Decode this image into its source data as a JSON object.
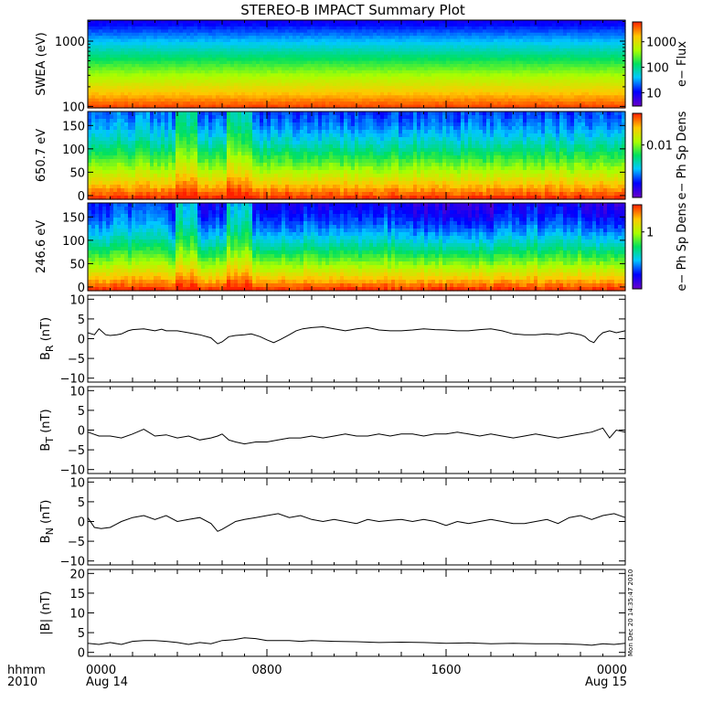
{
  "chart_data": {
    "type": "multi-panel",
    "title": "STEREO-B IMPACT Summary Plot",
    "x_axis": {
      "tick_labels": [
        "0000",
        "0800",
        "1600",
        "0000"
      ],
      "tick_hours": [
        0,
        8,
        16,
        24
      ],
      "date_labels": [
        "Aug 14",
        "Aug 15"
      ],
      "row_labels": [
        "hhmm",
        "2010"
      ],
      "range_hours": [
        0,
        24
      ]
    },
    "timestamp": "Mon Dec 20 14:35:47 2010",
    "spectrograms": [
      {
        "ylabel": "SWEA (eV)",
        "yscale": "log",
        "ylim": [
          95,
          2100
        ],
        "yticks": [
          100,
          1000
        ],
        "ytick_labels": [
          "100",
          "1000"
        ],
        "colorbar": {
          "label": "e− Flux",
          "scale": "log",
          "range": [
            3,
            6000
          ],
          "ticks": [
            10,
            100,
            1000
          ],
          "tick_labels": [
            "10",
            "100",
            "1000"
          ]
        }
      },
      {
        "ylabel": "650.7 eV",
        "yscale": "linear",
        "ylim": [
          -8,
          180
        ],
        "yticks": [
          0,
          50,
          100,
          150
        ],
        "ytick_labels": [
          "0",
          "50",
          "100",
          "150"
        ],
        "colorbar": {
          "label": "e− Ph Sp Dens",
          "scale": "log",
          "range": [
            0.001,
            0.04
          ],
          "ticks": [
            0.01
          ],
          "tick_labels": [
            "0.01"
          ]
        }
      },
      {
        "ylabel": "246.6 eV",
        "yscale": "linear",
        "ylim": [
          -8,
          180
        ],
        "yticks": [
          0,
          50,
          100,
          150
        ],
        "ytick_labels": [
          "0",
          "50",
          "100",
          "150"
        ],
        "colorbar": {
          "label": "e− Ph Sp Dens",
          "scale": "log",
          "range": [
            0.1,
            3
          ],
          "ticks": [
            1
          ],
          "tick_labels": [
            "1"
          ]
        }
      }
    ],
    "lines": [
      {
        "ylabel": "B",
        "ylabel_sub": "R",
        "ylabel_unit": "(nT)",
        "ylim": [
          -11,
          11
        ],
        "yticks": [
          -10,
          -5,
          0,
          5,
          10
        ],
        "ytick_labels": [
          "−10",
          "−5",
          "0",
          "5",
          "10"
        ],
        "x": [
          0,
          0.3,
          0.5,
          0.8,
          1.0,
          1.3,
          1.5,
          1.8,
          2.0,
          2.5,
          3.0,
          3.3,
          3.5,
          4.0,
          4.5,
          5.0,
          5.5,
          5.8,
          6.0,
          6.3,
          6.6,
          7.0,
          7.3,
          7.7,
          8.0,
          8.3,
          8.6,
          9.0,
          9.3,
          9.6,
          10.0,
          10.5,
          11.0,
          11.5,
          12.0,
          12.5,
          13.0,
          13.5,
          14.0,
          14.5,
          15.0,
          15.5,
          16.0,
          16.5,
          17.0,
          17.5,
          18.0,
          18.5,
          19.0,
          19.5,
          20.0,
          20.5,
          21.0,
          21.5,
          22.0,
          22.2,
          22.4,
          22.6,
          22.8,
          23.0,
          23.3,
          23.6,
          24.0
        ],
        "y": [
          1.5,
          1.0,
          2.5,
          1.0,
          0.8,
          1.0,
          1.2,
          2.0,
          2.3,
          2.5,
          2.0,
          2.4,
          2.0,
          2.0,
          1.5,
          1.0,
          0.2,
          -1.3,
          -0.8,
          0.5,
          0.8,
          1.0,
          1.2,
          0.5,
          -0.3,
          -1.0,
          -0.2,
          1.0,
          2.0,
          2.5,
          2.8,
          3.0,
          2.5,
          2.0,
          2.5,
          2.8,
          2.2,
          2.0,
          2.0,
          2.2,
          2.5,
          2.3,
          2.2,
          2.0,
          2.0,
          2.3,
          2.5,
          2.0,
          1.2,
          1.0,
          1.0,
          1.2,
          1.0,
          1.5,
          1.0,
          0.5,
          -0.5,
          -1.0,
          0.5,
          1.5,
          2.0,
          1.5,
          2.0
        ]
      },
      {
        "ylabel": "B",
        "ylabel_sub": "T",
        "ylabel_unit": "(nT)",
        "ylim": [
          -11,
          11
        ],
        "yticks": [
          -10,
          -5,
          0,
          5,
          10
        ],
        "ytick_labels": [
          "−10",
          "−5",
          "0",
          "5",
          "10"
        ],
        "x": [
          0,
          0.5,
          1.0,
          1.5,
          2.0,
          2.5,
          3.0,
          3.5,
          4.0,
          4.5,
          5.0,
          5.5,
          5.8,
          6.0,
          6.3,
          6.6,
          7.0,
          7.5,
          8.0,
          8.5,
          9.0,
          9.5,
          10.0,
          10.5,
          11.0,
          11.5,
          12.0,
          12.5,
          13.0,
          13.5,
          14.0,
          14.5,
          15.0,
          15.5,
          16.0,
          16.5,
          17.0,
          17.5,
          18.0,
          18.5,
          19.0,
          19.5,
          20.0,
          20.5,
          21.0,
          21.5,
          22.0,
          22.5,
          23.0,
          23.3,
          23.6,
          24.0
        ],
        "y": [
          -0.5,
          -1.5,
          -1.5,
          -2.0,
          -1.0,
          0.2,
          -1.5,
          -1.2,
          -2.0,
          -1.5,
          -2.5,
          -2.0,
          -1.5,
          -1.0,
          -2.5,
          -3.0,
          -3.5,
          -3.0,
          -3.0,
          -2.5,
          -2.0,
          -2.0,
          -1.5,
          -2.0,
          -1.5,
          -1.0,
          -1.5,
          -1.5,
          -1.0,
          -1.5,
          -1.0,
          -1.0,
          -1.5,
          -1.0,
          -1.0,
          -0.5,
          -1.0,
          -1.5,
          -1.0,
          -1.5,
          -2.0,
          -1.5,
          -1.0,
          -1.5,
          -2.0,
          -1.5,
          -1.0,
          -0.5,
          0.5,
          -2.0,
          0.0,
          -0.5
        ]
      },
      {
        "ylabel": "B",
        "ylabel_sub": "N",
        "ylabel_unit": "(nT)",
        "ylim": [
          -11,
          11
        ],
        "yticks": [
          -10,
          -5,
          0,
          5,
          10
        ],
        "ytick_labels": [
          "−10",
          "−5",
          "0",
          "5",
          "10"
        ],
        "x": [
          0,
          0.3,
          0.6,
          1.0,
          1.5,
          2.0,
          2.5,
          3.0,
          3.5,
          4.0,
          4.5,
          5.0,
          5.5,
          5.8,
          6.0,
          6.3,
          6.6,
          7.0,
          7.5,
          8.0,
          8.5,
          9.0,
          9.5,
          10.0,
          10.5,
          11.0,
          11.5,
          12.0,
          12.5,
          13.0,
          13.5,
          14.0,
          14.5,
          15.0,
          15.5,
          16.0,
          16.5,
          17.0,
          17.5,
          18.0,
          18.5,
          19.0,
          19.5,
          20.0,
          20.5,
          21.0,
          21.5,
          22.0,
          22.5,
          23.0,
          23.5,
          24.0
        ],
        "y": [
          1.0,
          -1.5,
          -1.8,
          -1.5,
          0.0,
          1.0,
          1.5,
          0.5,
          1.5,
          0.0,
          0.5,
          1.0,
          -0.5,
          -2.5,
          -2.0,
          -1.0,
          0.0,
          0.5,
          1.0,
          1.5,
          2.0,
          1.0,
          1.5,
          0.5,
          0.0,
          0.5,
          0.0,
          -0.5,
          0.5,
          0.0,
          0.3,
          0.5,
          0.0,
          0.5,
          0.0,
          -1.0,
          0.0,
          -0.5,
          0.0,
          0.5,
          0.0,
          -0.5,
          -0.5,
          0.0,
          0.5,
          -0.5,
          1.0,
          1.5,
          0.5,
          1.5,
          2.0,
          1.0
        ]
      },
      {
        "ylabel": "|B|",
        "ylabel_sub": "",
        "ylabel_unit": "(nT)",
        "ylim": [
          -1,
          21
        ],
        "yticks": [
          0,
          5,
          10,
          15,
          20
        ],
        "ytick_labels": [
          "0",
          "5",
          "10",
          "15",
          "20"
        ],
        "x": [
          0,
          0.5,
          1.0,
          1.5,
          2.0,
          2.5,
          3.0,
          3.5,
          4.0,
          4.5,
          5.0,
          5.5,
          6.0,
          6.5,
          7.0,
          7.5,
          8.0,
          8.5,
          9.0,
          9.5,
          10.0,
          11.0,
          12.0,
          13.0,
          14.0,
          15.0,
          16.0,
          17.0,
          18.0,
          19.0,
          20.0,
          21.0,
          22.0,
          22.5,
          23.0,
          23.5,
          24.0
        ],
        "y": [
          2.3,
          2.0,
          2.5,
          2.0,
          2.8,
          3.0,
          3.0,
          2.8,
          2.5,
          2.0,
          2.5,
          2.2,
          3.0,
          3.2,
          3.7,
          3.5,
          3.0,
          3.0,
          3.0,
          2.8,
          3.0,
          2.8,
          2.7,
          2.5,
          2.6,
          2.5,
          2.3,
          2.4,
          2.2,
          2.3,
          2.2,
          2.2,
          2.0,
          1.8,
          2.2,
          2.0,
          2.3
        ]
      }
    ]
  }
}
